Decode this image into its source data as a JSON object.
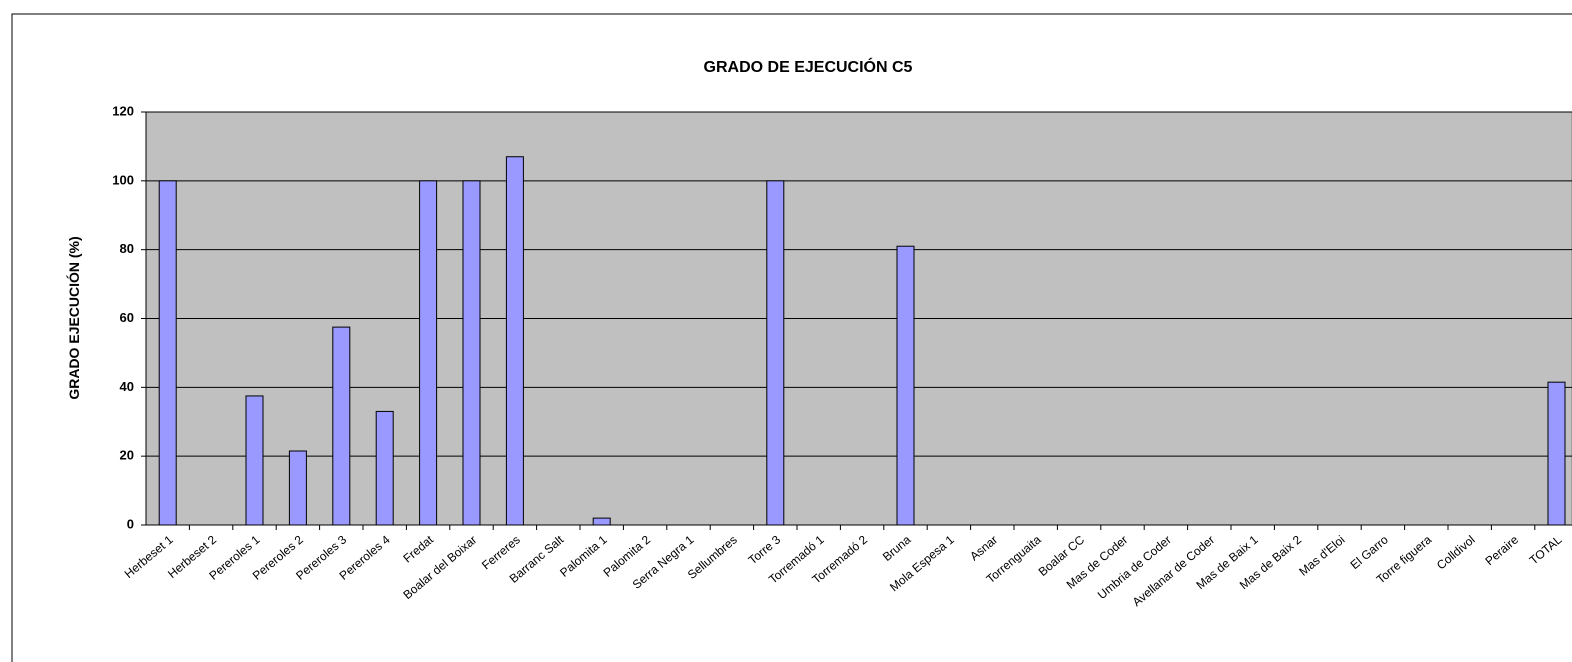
{
  "chart_data": {
    "type": "bar",
    "title": "GRADO DE EJECUCIÓN C5",
    "y_label": "GRADO EJECUCIÓN (%)",
    "categories": [
      "Herbeset 1",
      "Herbeset 2",
      "Pereroles 1",
      "Pereroles 2",
      "Pereroles 3",
      "Pereroles 4",
      "Fredat",
      "Boalar del Boixar",
      "Ferreres",
      "Barranc Salt",
      "Palomita 1",
      "Palomita 2",
      "Serra Negra 1",
      "Sellumbres",
      "Torre 3",
      "Torremadó 1",
      "Torremadó 2",
      "Bruna",
      "Mola Espesa 1",
      "Asnar",
      "Torrenguaita",
      "Boalar CC",
      "Mas de Coder",
      "Umbria de Coder",
      "Avellanar de Coder",
      "Mas de Baix 1",
      "Mas de Baix 2",
      "Mas d'Eloi",
      "El Garro",
      "Torre figuera",
      "Colldivol",
      "Peraire",
      "TOTAL"
    ],
    "values": [
      100,
      0,
      37.5,
      21.5,
      57.5,
      33,
      100,
      100,
      107,
      0,
      2,
      0,
      0,
      0,
      100,
      0,
      0,
      81,
      0,
      0,
      0,
      0,
      0,
      0,
      0,
      0,
      0,
      0,
      0,
      0,
      0,
      0,
      41.5
    ],
    "color": "#9999ff",
    "ylim": [
      0,
      120
    ],
    "yticks": [
      0,
      20,
      40,
      60,
      80,
      100,
      120
    ],
    "grid": true
  }
}
